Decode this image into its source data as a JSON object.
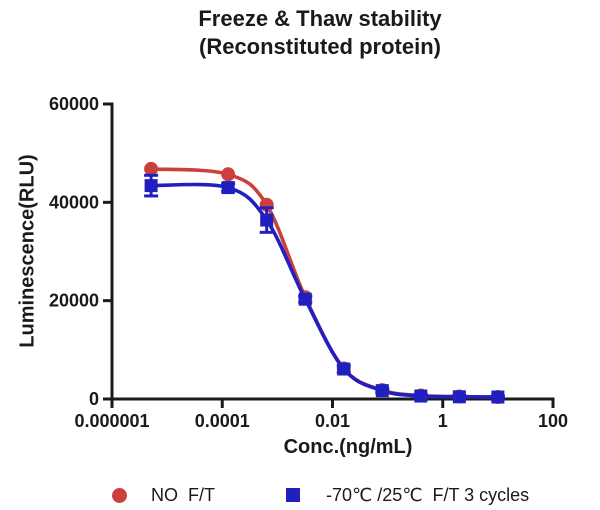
{
  "figure": {
    "title_line1": "Freeze & Thaw stability",
    "title_line2": "(Reconstituted protein)"
  },
  "chart_data": {
    "type": "line",
    "title": "Freeze & Thaw stability (Reconstituted protein)",
    "xlabel": "Conc.(ng/mL)",
    "ylabel": "Luminescence(RLU)",
    "x_scale": "log",
    "grid": false,
    "legend_position": "bottom",
    "axis_color": "#1a1a1a",
    "xlim": [
      1e-06,
      100
    ],
    "ylim": [
      0,
      60000
    ],
    "x_ticks": [
      {
        "value": 1e-06,
        "label": "0.000001"
      },
      {
        "value": 0.0001,
        "label": "0.0001"
      },
      {
        "value": 0.01,
        "label": "0.01"
      },
      {
        "value": 1,
        "label": "1"
      },
      {
        "value": 100,
        "label": "100"
      }
    ],
    "y_ticks": [
      {
        "value": 0,
        "label": "0"
      },
      {
        "value": 20000,
        "label": "20000"
      },
      {
        "value": 40000,
        "label": "40000"
      },
      {
        "value": 60000,
        "label": "60000"
      }
    ],
    "series": [
      {
        "name": "NO  F/T",
        "color": "#cb403d",
        "marker": "circle",
        "x": [
          5.12e-06,
          0.000128,
          0.00064,
          0.0032,
          0.016,
          0.08,
          0.4,
          2,
          10
        ],
        "y": [
          46800,
          45700,
          39500,
          20700,
          6200,
          1800,
          700,
          500,
          400
        ],
        "yerr": [
          0,
          0,
          0,
          0,
          0,
          0,
          0,
          0,
          0
        ]
      },
      {
        "name": "-70℃ /25℃  F/T 3 cycles",
        "color": "#2020c0",
        "marker": "square",
        "x": [
          5.12e-06,
          0.000128,
          0.00064,
          0.0032,
          0.016,
          0.08,
          0.4,
          2,
          10
        ],
        "y": [
          43400,
          43000,
          36400,
          20300,
          6100,
          1700,
          600,
          450,
          400
        ],
        "yerr": [
          2100,
          800,
          2500,
          600,
          700,
          400,
          300,
          250,
          200
        ]
      }
    ]
  },
  "legend": {
    "items": [
      {
        "label": "NO  F/T",
        "marker": "circle",
        "color": "#cb403d"
      },
      {
        "label": "-70℃ /25℃  F/T 3 cycles",
        "marker": "square",
        "color": "#2020c0"
      }
    ]
  }
}
